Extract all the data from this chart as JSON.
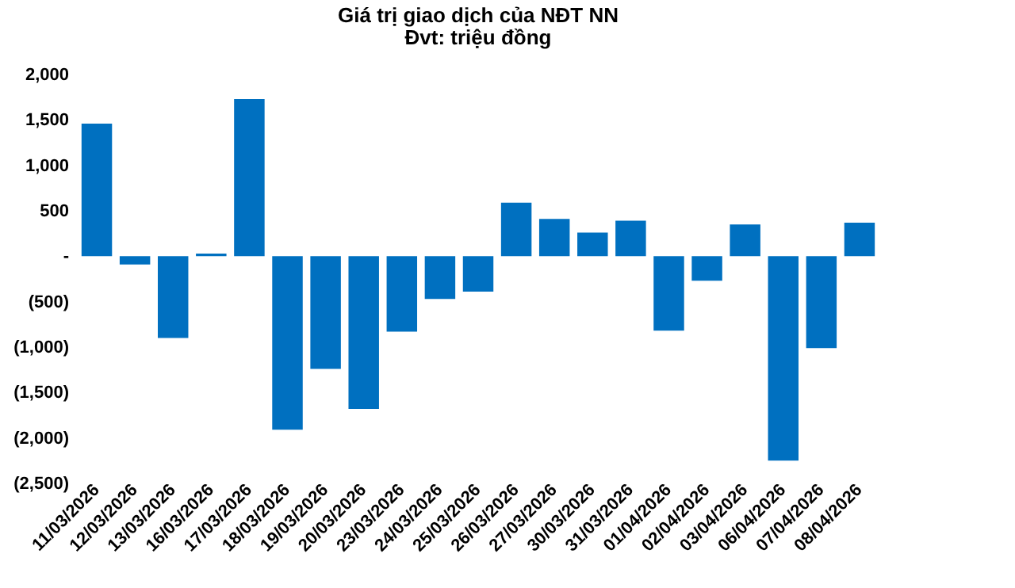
{
  "chart_data": {
    "type": "bar",
    "title": "Giá trị giao dịch của NĐT NN",
    "subtitle": "Đvt: triệu đồng",
    "categories": [
      "11/03/2026",
      "12/03/2026",
      "13/03/2026",
      "16/03/2026",
      "17/03/2026",
      "18/03/2026",
      "19/03/2026",
      "20/03/2026",
      "23/03/2026",
      "24/03/2026",
      "25/03/2026",
      "26/03/2026",
      "27/03/2026",
      "30/03/2026",
      "31/03/2026",
      "01/04/2026",
      "02/04/2026",
      "03/04/2026",
      "06/04/2026",
      "07/04/2026",
      "08/04/2026"
    ],
    "values": [
      1460,
      -90,
      -900,
      30,
      1730,
      -1910,
      -1240,
      -1680,
      -830,
      -470,
      -390,
      590,
      410,
      260,
      390,
      -820,
      -270,
      350,
      -2250,
      -1010,
      370
    ],
    "color": "#0070c0",
    "ylim": [
      -2500,
      2000
    ],
    "yticks": [
      {
        "value": -2500,
        "label": "(2,500)"
      },
      {
        "value": -2000,
        "label": "(2,000)"
      },
      {
        "value": -1500,
        "label": "(1,500)"
      },
      {
        "value": -1000,
        "label": "(1,000)"
      },
      {
        "value": -500,
        "label": "(500)"
      },
      {
        "value": 0,
        "label": "-"
      },
      {
        "value": 500,
        "label": "500"
      },
      {
        "value": 1000,
        "label": "1,000"
      },
      {
        "value": 1500,
        "label": "1,500"
      },
      {
        "value": 2000,
        "label": "2,000"
      }
    ],
    "grid": false
  }
}
